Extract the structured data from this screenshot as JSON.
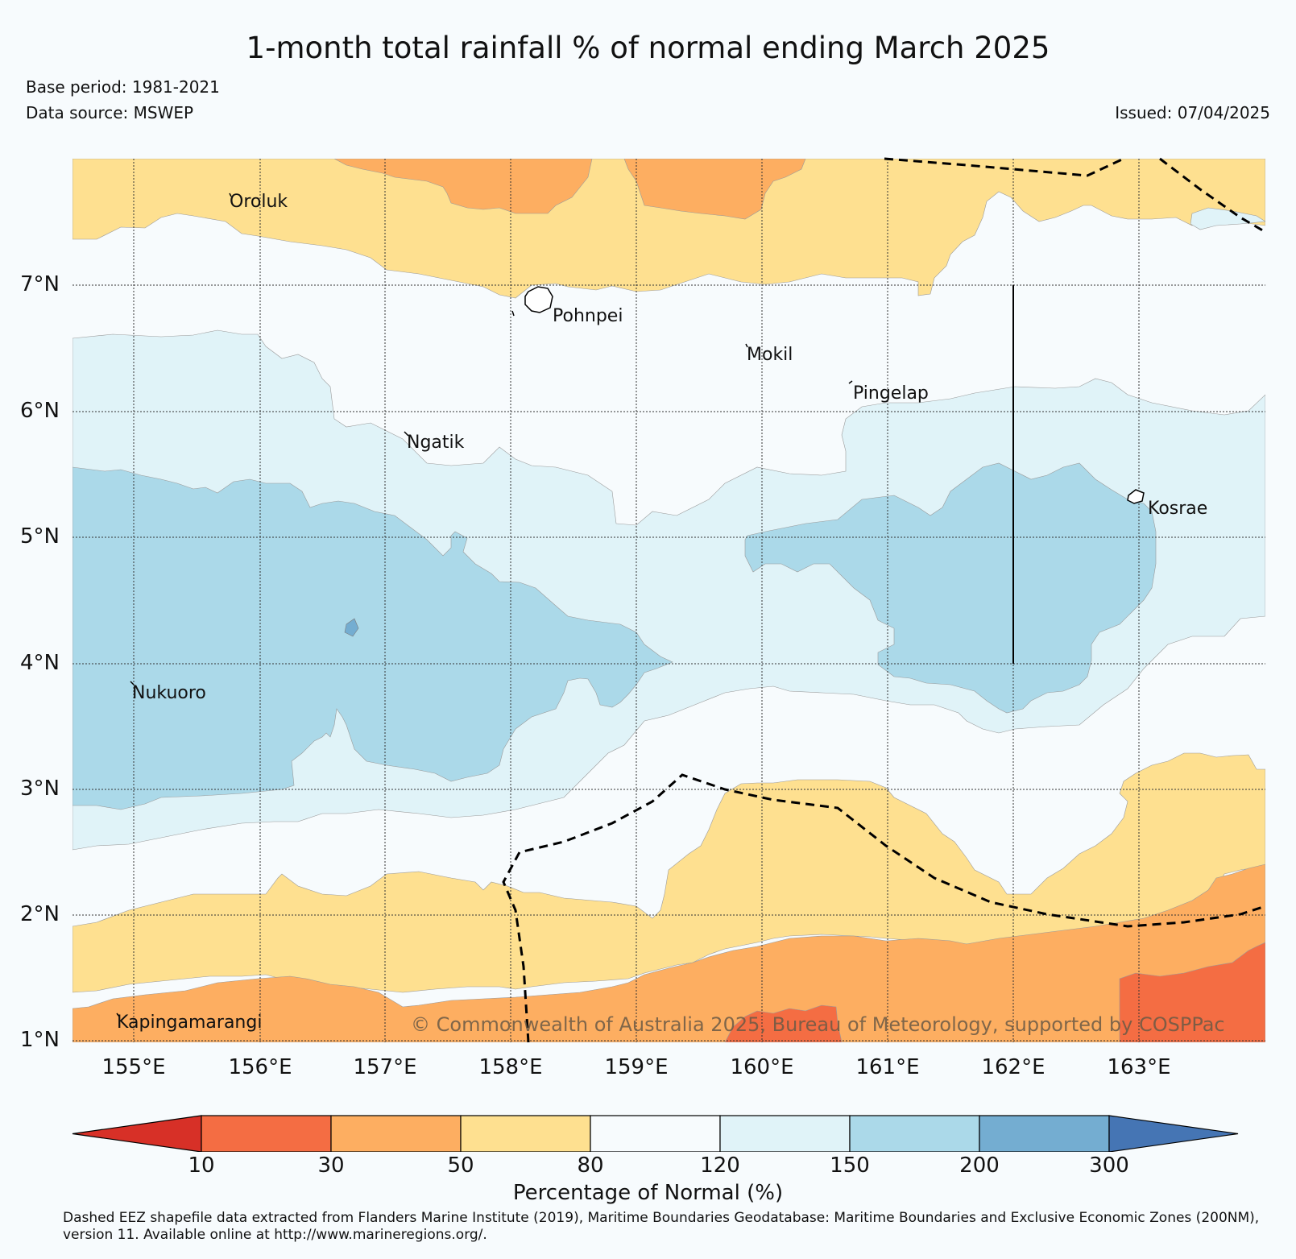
{
  "header": {
    "title": "1-month total rainfall % of normal ending March 2025",
    "base_period": "Base period: 1981-2021",
    "data_source": "Data source: MSWEP",
    "issued": "Issued: 07/04/2025"
  },
  "map": {
    "lat_labels": [
      "1°N",
      "2°N",
      "3°N",
      "4°N",
      "5°N",
      "6°N",
      "7°N"
    ],
    "lon_labels": [
      "155°E",
      "156°E",
      "157°E",
      "158°E",
      "159°E",
      "160°E",
      "161°E",
      "162°E",
      "163°E"
    ],
    "places": [
      "Oroluk",
      "Pohnpei",
      "Mokil",
      "Pingelap",
      "Ngatik",
      "Kosrae",
      "Nukuoro",
      "Kapingamarangi"
    ],
    "copyright": "© Commonwealth of Australia 2025, Bureau of Meteorology, supported by COSPPac"
  },
  "legend": {
    "colors": [
      "#d73027",
      "#f46d43",
      "#fdae61",
      "#fee090",
      "#f7fbfd",
      "#e0f3f8",
      "#abd9e9",
      "#74add1",
      "#4575b4"
    ],
    "ticks": [
      "10",
      "30",
      "50",
      "80",
      "120",
      "150",
      "200",
      "300"
    ],
    "label": "Percentage of Normal (%)"
  },
  "footnote": "Dashed EEZ shapefile data extracted from Flanders Marine Institute (2019), Maritime Boundaries Geodatabase: Maritime Boundaries and Exclusive Economic Zones (200NM), version 11. Available online at http://www.marineregions.org/."
}
